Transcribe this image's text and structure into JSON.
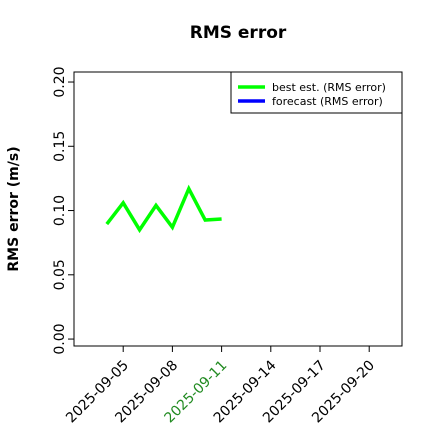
{
  "chart_data": {
    "type": "line",
    "title": "RMS error",
    "ylabel": "RMS error (m/s)",
    "x": [
      "2025-09-04",
      "2025-09-05",
      "2025-09-06",
      "2025-09-07",
      "2025-09-08",
      "2025-09-09",
      "2025-09-10",
      "2025-09-11"
    ],
    "series": [
      {
        "name": "best est. (RMS error)",
        "color": "#00ff00",
        "values": [
          0.0895,
          0.106,
          0.085,
          0.104,
          0.087,
          0.117,
          0.0926,
          0.0934
        ]
      },
      {
        "name": "forecast (RMS error)",
        "color": "#0000ff",
        "values": [
          null,
          null,
          null,
          null,
          null,
          null,
          null,
          null
        ]
      }
    ],
    "xlim": [
      "2025-09-02",
      "2025-09-22"
    ],
    "xticks": [
      "2025-09-05",
      "2025-09-08",
      "2025-09-11",
      "2025-09-14",
      "2025-09-17",
      "2025-09-20"
    ],
    "highlight_xtick": "2025-09-11",
    "highlight_color": "#228b22",
    "ylim": [
      -0.0054,
      0.2078
    ],
    "yticks": [
      {
        "value": 0,
        "label": "0.00"
      },
      0.05,
      {
        "value": 0.1,
        "label": "0.10"
      },
      0.15,
      {
        "value": 0.2,
        "label": "0.20"
      }
    ],
    "legend": "upper right"
  }
}
